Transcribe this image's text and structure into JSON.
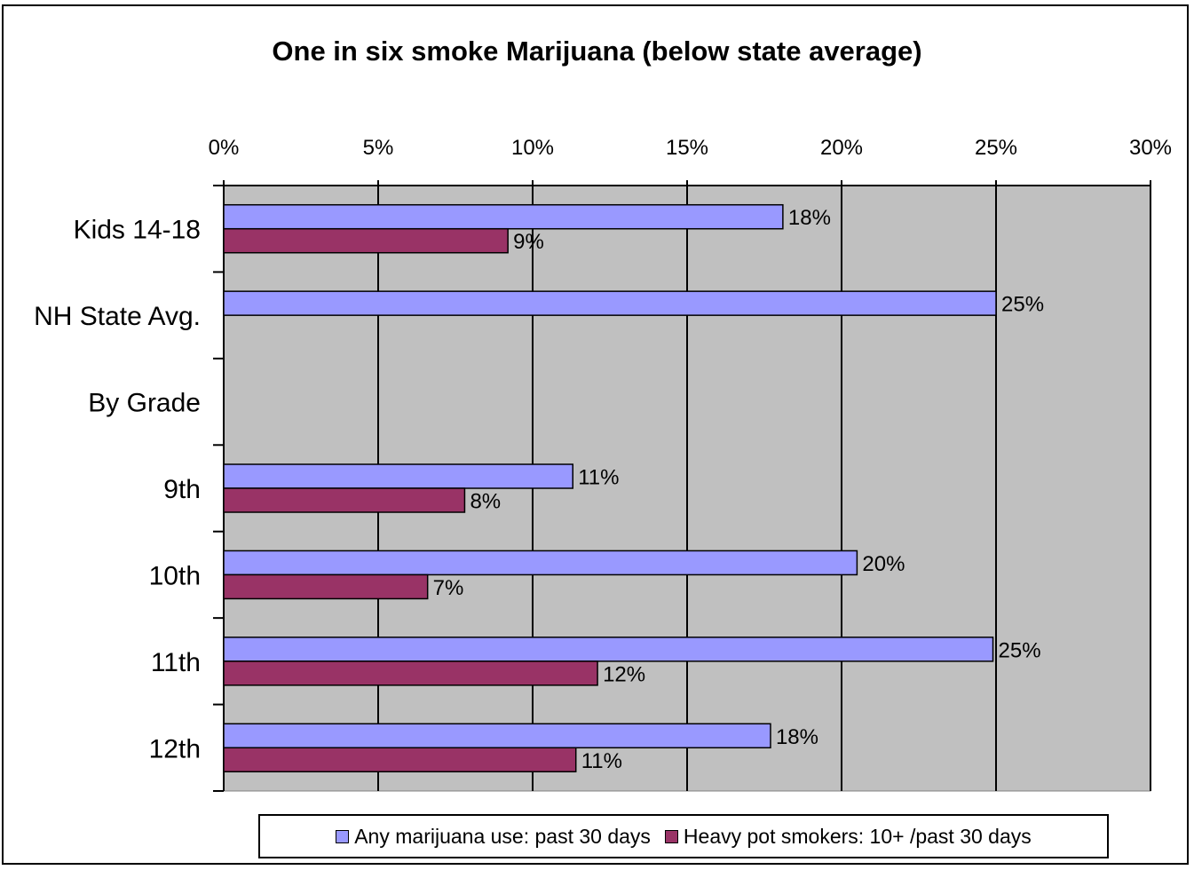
{
  "colors": {
    "plot_bg": "#c0c0c0",
    "series_any": "#9999ff",
    "series_heavy": "#993366"
  },
  "chart_data": {
    "type": "bar",
    "orientation": "horizontal",
    "title": "One in six smoke Marijuana (below state average)",
    "categories": [
      "Kids 14-18",
      "NH State Avg.",
      "By Grade",
      "9th",
      "10th",
      "11th",
      "12th"
    ],
    "series": [
      {
        "name": "Any marijuana use: past 30 days",
        "values": [
          18.1,
          25.0,
          null,
          11.3,
          20.5,
          24.9,
          17.7
        ],
        "labels": [
          "18%",
          "25%",
          "",
          "11%",
          "20%",
          "25%",
          "18%"
        ],
        "color": "#9999ff"
      },
      {
        "name": "Heavy pot smokers: 10+ /past 30 days",
        "values": [
          9.2,
          null,
          null,
          7.8,
          6.6,
          12.1,
          11.4
        ],
        "labels": [
          "9%",
          "",
          "",
          "8%",
          "7%",
          "12%",
          "11%"
        ],
        "color": "#993366"
      }
    ],
    "xlim": [
      0,
      30
    ],
    "x_ticks": [
      "0%",
      "5%",
      "10%",
      "15%",
      "20%",
      "25%",
      "30%"
    ],
    "x_axis_position": "top",
    "grid": true,
    "legend_position": "bottom"
  }
}
